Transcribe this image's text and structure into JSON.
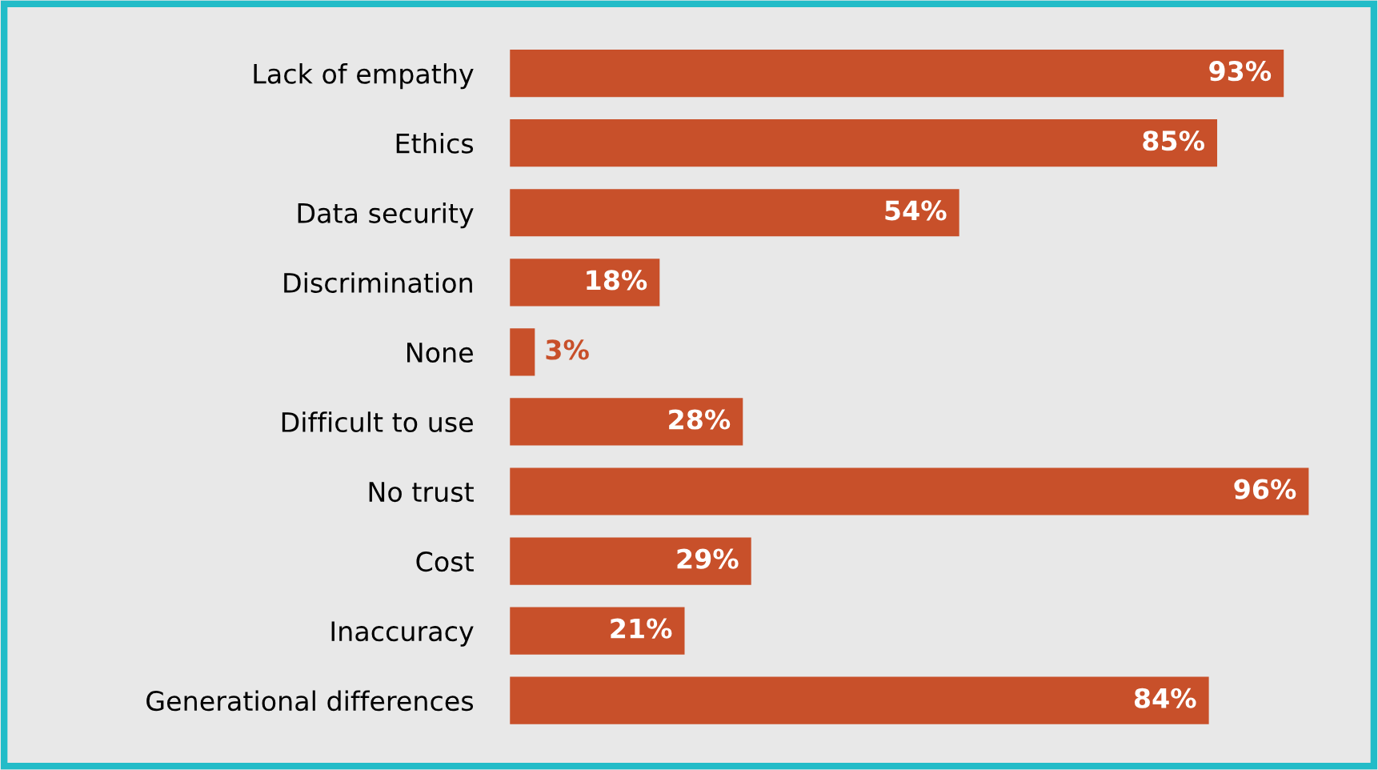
{
  "chart_data": {
    "type": "bar",
    "orientation": "horizontal",
    "categories": [
      "Lack of empathy",
      "Ethics",
      "Data security",
      "Discrimination",
      "None",
      "Difficult to use",
      "No trust",
      "Cost",
      "Inaccuracy",
      "Generational differences"
    ],
    "values": [
      93,
      85,
      54,
      18,
      3,
      28,
      96,
      29,
      21,
      84
    ],
    "value_labels": [
      "93%",
      "85%",
      "54%",
      "18%",
      "3%",
      "28%",
      "96%",
      "29%",
      "21%",
      "84%"
    ],
    "color": "#c8502a",
    "grid": false,
    "legend": false
  }
}
